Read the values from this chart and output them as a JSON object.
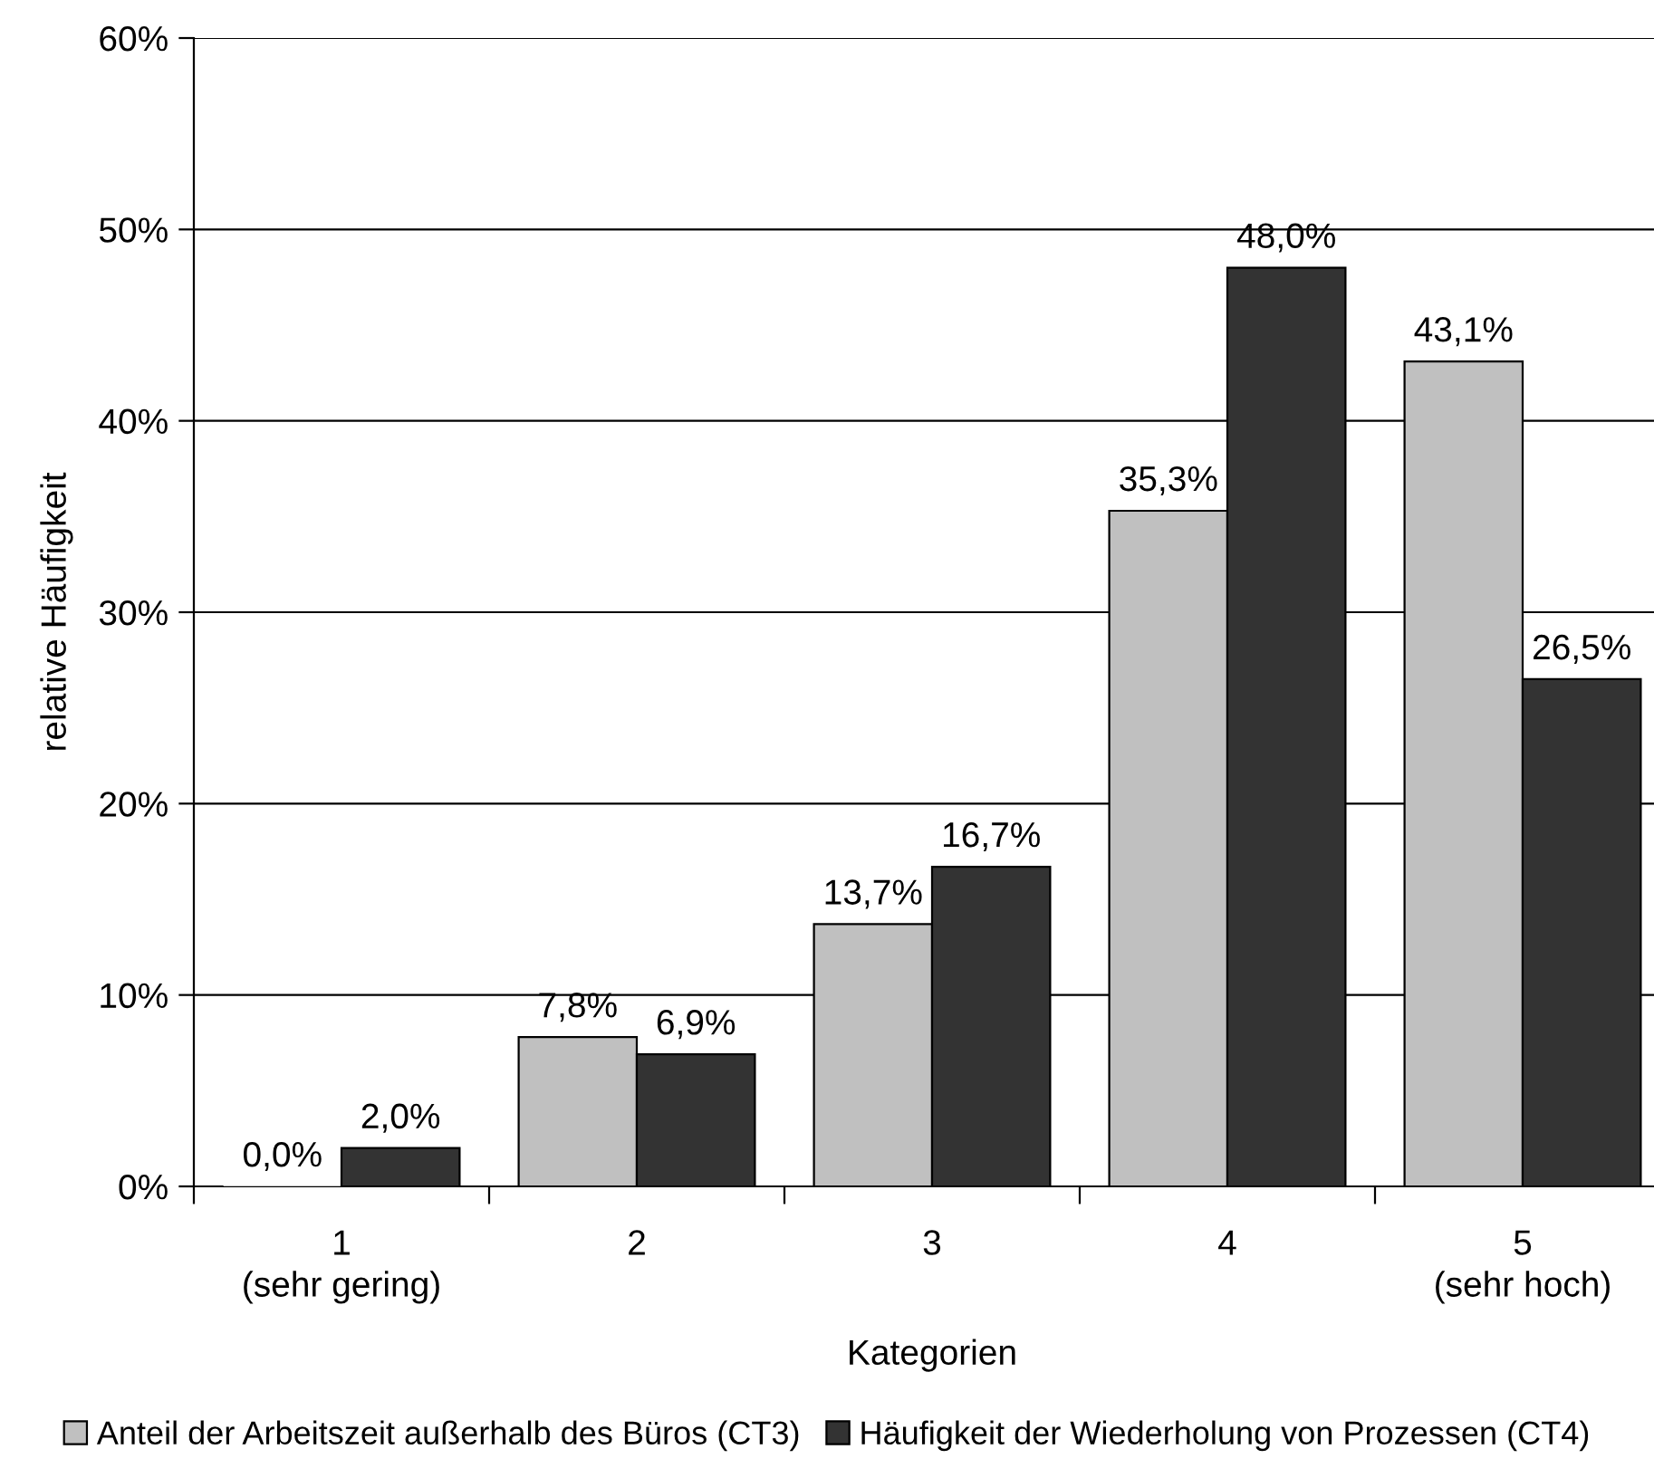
{
  "chart_data": {
    "type": "bar",
    "xlabel": "Kategorien",
    "ylabel": "relative Häufigkeit",
    "categories": [
      "1\n(sehr gering)",
      "2",
      "3",
      "4",
      "5\n(sehr hoch)"
    ],
    "series": [
      {
        "name": "Anteil der Arbeitszeit außerhalb des Büros (CT3)",
        "color": "#c0c0c0",
        "values": [
          0.0,
          7.8,
          13.7,
          35.3,
          43.1
        ],
        "value_labels": [
          "0,0%",
          "7,8%",
          "13,7%",
          "35,3%",
          "43,1%"
        ]
      },
      {
        "name": "Häufigkeit der Wiederholung von Prozessen (CT4)",
        "color": "#333333",
        "values": [
          2.0,
          6.9,
          16.7,
          48.0,
          26.5
        ],
        "value_labels": [
          "2,0%",
          "6,9%",
          "16,7%",
          "48,0%",
          "26,5%"
        ]
      }
    ],
    "ylim": [
      0,
      60
    ],
    "yticks": [
      {
        "value": 0,
        "label": "0%"
      },
      {
        "value": 10,
        "label": "10%"
      },
      {
        "value": 20,
        "label": "20%"
      },
      {
        "value": 30,
        "label": "30%"
      },
      {
        "value": 40,
        "label": "40%"
      },
      {
        "value": 50,
        "label": "50%"
      },
      {
        "value": 60,
        "label": "60%"
      }
    ],
    "grid": "y",
    "legend": "bottom"
  }
}
